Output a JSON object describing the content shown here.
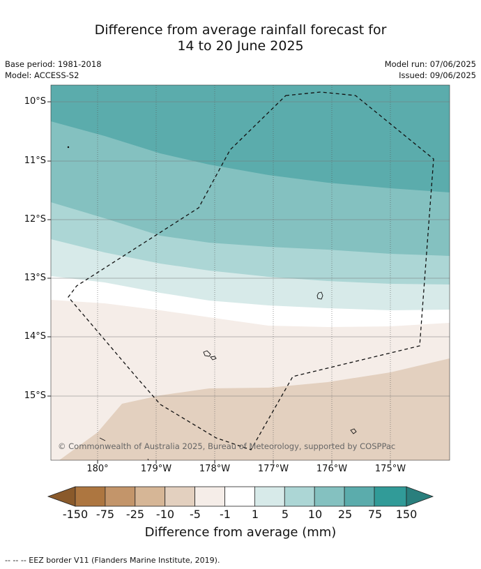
{
  "title_line1": "Difference from average rainfall forecast for",
  "title_line2": "14 to 20 June 2025",
  "base_period": "Base period: 1981-2018",
  "model": "Model: ACCESS-S2",
  "model_run": "Model run: 07/06/2025",
  "issued": "Issued: 09/06/2025",
  "copyright": "© Commonwealth of Australia 2025, Bureau of Meteorology, supported by COSPPac",
  "lat_labels": [
    "10°S",
    "11°S",
    "12°S",
    "13°S",
    "14°S",
    "15°S"
  ],
  "lon_labels": [
    "180°",
    "179°W",
    "178°W",
    "177°W",
    "176°W",
    "175°W"
  ],
  "colorbar": {
    "title": "Difference from average (mm)",
    "tick_labels": [
      "-150",
      "-75",
      "-25",
      "-10",
      "-5",
      "-1",
      "1",
      "5",
      "10",
      "25",
      "75",
      "150"
    ],
    "colors": {
      "below_min": "#8a5a2b",
      "c1": "#ad7640",
      "c2": "#c3956a",
      "c3": "#d6b696",
      "c4": "#e3d0bf",
      "c5": "#f5ede8",
      "c6": "#ffffff",
      "c7": "#d7eae9",
      "c8": "#acd6d5",
      "c9": "#84c1c0",
      "c10": "#5bacac",
      "c11": "#319b98",
      "above_max": "#2a7f7d"
    }
  },
  "footnote": "--  --  -- EEZ border V11 (Flanders Marine Institute, 2019)."
}
